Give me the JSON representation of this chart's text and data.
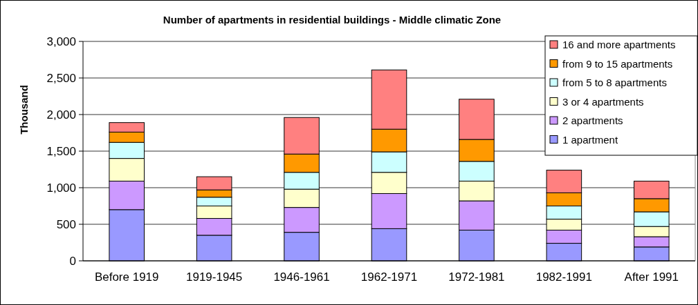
{
  "chart_data": {
    "type": "bar",
    "title": "Number of apartments in residential buildings - Middle climatic Zone",
    "ylabel": "Thousand",
    "categories": [
      "Before 1919",
      "1919-1945",
      "1946-1961",
      "1962-1971",
      "1972-1981",
      "1982-1991",
      "After 1991"
    ],
    "stacked": true,
    "ylim": [
      0,
      3000
    ],
    "yticks": [
      {
        "value": 0,
        "label": "0"
      },
      {
        "value": 500,
        "label": "500"
      },
      {
        "value": 1000,
        "label": "1,000"
      },
      {
        "value": 1500,
        "label": "1,500"
      },
      {
        "value": 2000,
        "label": "2,000"
      },
      {
        "value": 2500,
        "label": "2,500"
      },
      {
        "value": 3000,
        "label": "3,000"
      }
    ],
    "grid": "y",
    "legend": "top right",
    "series": [
      {
        "name": "1 apartment",
        "color": "#9999ff",
        "values": [
          700,
          350,
          390,
          440,
          420,
          240,
          190
        ]
      },
      {
        "name": "2 apartments",
        "color": "#cc99ff",
        "values": [
          390,
          230,
          340,
          480,
          400,
          180,
          140
        ]
      },
      {
        "name": "3 or 4 apartments",
        "color": "#ffffcc",
        "values": [
          310,
          170,
          250,
          290,
          270,
          150,
          140
        ]
      },
      {
        "name": "from 5 to 8 apartments",
        "color": "#ccffff",
        "values": [
          220,
          120,
          230,
          280,
          270,
          180,
          200
        ]
      },
      {
        "name": "from 9 to 15 apartments",
        "color": "#ff9900",
        "values": [
          140,
          100,
          250,
          310,
          300,
          180,
          180
        ]
      },
      {
        "name": "16 and more apartments",
        "color": "#ff8080",
        "values": [
          130,
          180,
          500,
          810,
          550,
          310,
          240
        ]
      }
    ]
  }
}
